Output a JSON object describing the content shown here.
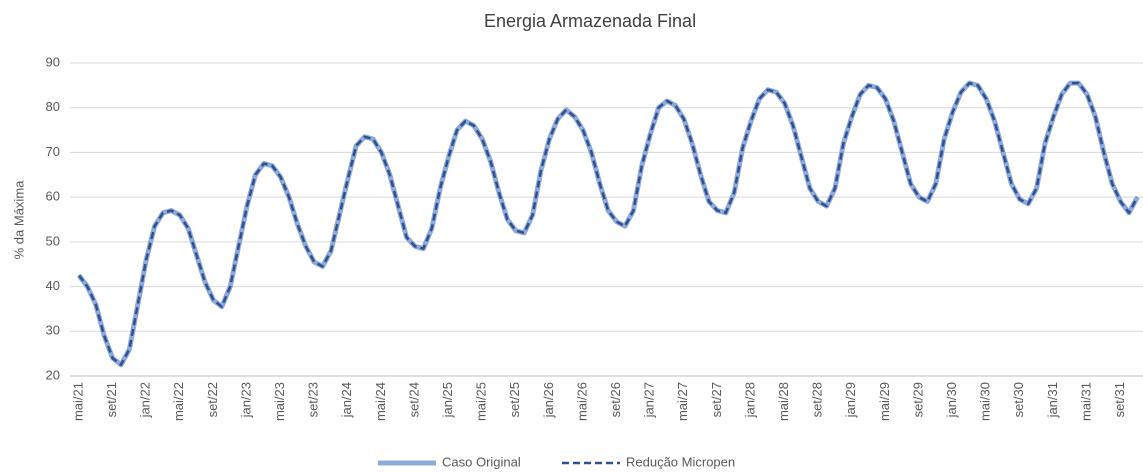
{
  "chart_data": {
    "type": "line",
    "title": "Energia Armazenada Final",
    "y_label": "% da Máxima",
    "categories": [
      "mai/21",
      null,
      null,
      null,
      "set/21",
      null,
      null,
      null,
      "jan/22",
      null,
      null,
      null,
      "mai/22",
      null,
      null,
      null,
      "set/22",
      null,
      null,
      null,
      "jan/23",
      null,
      null,
      null,
      "mai/23",
      null,
      null,
      null,
      "set/23",
      null,
      null,
      null,
      "jan/24",
      null,
      null,
      null,
      "mai/24",
      null,
      null,
      null,
      "set/24",
      null,
      null,
      null,
      "jan/25",
      null,
      null,
      null,
      "mai/25",
      null,
      null,
      null,
      "set/25",
      null,
      null,
      null,
      "jan/26",
      null,
      null,
      null,
      "mai/26",
      null,
      null,
      null,
      "set/26",
      null,
      null,
      null,
      "jan/27",
      null,
      null,
      null,
      "mai/27",
      null,
      null,
      null,
      "set/27",
      null,
      null,
      null,
      "jan/28",
      null,
      null,
      null,
      "mai/28",
      null,
      null,
      null,
      "set/28",
      null,
      null,
      null,
      "jan/29",
      null,
      null,
      null,
      "mai/29",
      null,
      null,
      null,
      "set/29",
      null,
      null,
      null,
      "jan/30",
      null,
      null,
      null,
      "mai/30",
      null,
      null,
      null,
      "set/30",
      null,
      null,
      null,
      "jan/31",
      null,
      null,
      null,
      "mai/31",
      null,
      null,
      null,
      "set/31",
      null,
      null
    ],
    "series": [
      {
        "name": "Caso Original",
        "color": "#8eaadb",
        "line_style": "solid",
        "values": [
          42.5,
          40,
          36,
          29,
          24,
          22.5,
          26,
          36,
          46,
          53.5,
          56.5,
          57,
          56,
          53,
          47,
          41,
          37,
          35.5,
          40,
          49,
          58,
          65,
          67.5,
          67,
          64.5,
          60,
          54,
          49,
          45.5,
          44.5,
          48,
          56,
          64,
          71.5,
          73.5,
          73,
          70,
          65,
          58,
          51,
          49,
          48.5,
          53,
          62,
          69,
          75,
          77,
          76,
          73,
          68,
          61,
          55,
          52.5,
          52,
          56,
          66,
          73,
          77.5,
          79.5,
          78,
          75,
          70,
          63,
          57,
          54.5,
          53.5,
          57,
          67,
          74,
          80,
          81.5,
          80.5,
          77.5,
          72,
          65,
          59,
          57,
          56.5,
          61,
          71,
          77,
          82,
          84,
          83.5,
          81,
          76,
          69,
          62,
          59,
          58,
          62,
          72,
          78,
          83,
          85,
          84.5,
          82,
          77,
          70,
          63,
          60,
          59,
          63,
          73,
          79,
          83.5,
          85.5,
          85,
          82,
          77,
          70,
          63,
          59.5,
          58.5,
          62,
          72,
          78,
          83,
          85.5,
          85.5,
          83,
          78,
          70,
          63,
          59,
          56.5,
          60
        ]
      },
      {
        "name": "Redução Micropen",
        "color": "#2f4f8f",
        "line_style": "dashed",
        "values": [
          42.5,
          40,
          36,
          29,
          24,
          22.5,
          26,
          36,
          46,
          53.5,
          56.5,
          57,
          56,
          53,
          47,
          41,
          37,
          35.5,
          40,
          49,
          58,
          65,
          67.5,
          67,
          64.5,
          60,
          54,
          49,
          45.5,
          44.5,
          48,
          56,
          64,
          71.5,
          73.5,
          73,
          70,
          65,
          58,
          51,
          49,
          48.5,
          53,
          62,
          69,
          75,
          77,
          76,
          73,
          68,
          61,
          55,
          52.5,
          52,
          56,
          66,
          73,
          77.5,
          79.5,
          78,
          75,
          70,
          63,
          57,
          54.5,
          53.5,
          57,
          67,
          74,
          80,
          81.5,
          80.5,
          77.5,
          72,
          65,
          59,
          57,
          56.5,
          61,
          71,
          77,
          82,
          84,
          83.5,
          81,
          76,
          69,
          62,
          59,
          58,
          62,
          72,
          78,
          83,
          85,
          84.5,
          82,
          77,
          70,
          63,
          60,
          59,
          63,
          73,
          79,
          83.5,
          85.5,
          85,
          82,
          77,
          70,
          63,
          59.5,
          58.5,
          62,
          72,
          78,
          83,
          85.5,
          85.5,
          83,
          78,
          70,
          63,
          59,
          56.5,
          60
        ]
      }
    ],
    "ylim": [
      20,
      90
    ],
    "yticks": [
      20,
      30,
      40,
      50,
      60,
      70,
      80,
      90
    ],
    "grid": true,
    "legend": "bottom"
  }
}
